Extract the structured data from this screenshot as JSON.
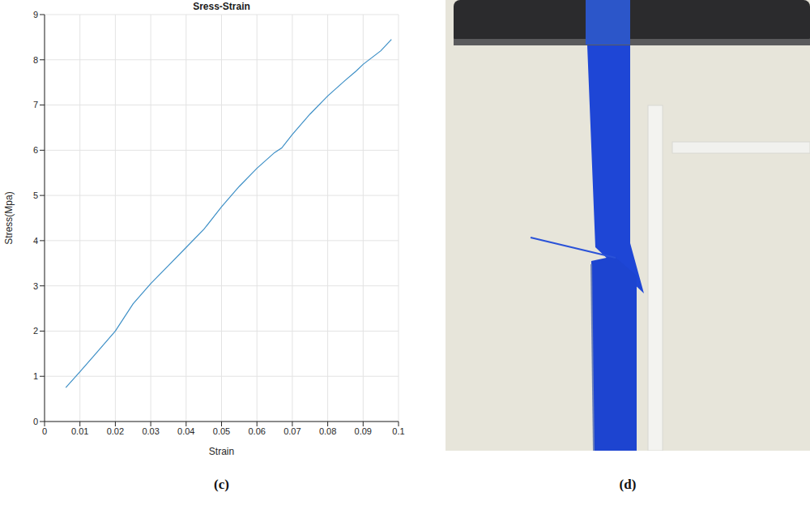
{
  "chart_data": {
    "type": "line",
    "title": "Sress-Strain",
    "x_label": "Strain",
    "y_label": "Stress(Mpa)",
    "panel_label": "(c)",
    "x": [
      0.006,
      0.01,
      0.015,
      0.02,
      0.025,
      0.03,
      0.035,
      0.04,
      0.045,
      0.05,
      0.055,
      0.06,
      0.065,
      0.067,
      0.07,
      0.075,
      0.08,
      0.085,
      0.088,
      0.09,
      0.095,
      0.098
    ],
    "values": [
      0.75,
      1.1,
      1.55,
      2.0,
      2.6,
      3.05,
      3.45,
      3.85,
      4.25,
      4.75,
      5.2,
      5.6,
      5.95,
      6.05,
      6.35,
      6.8,
      7.2,
      7.55,
      7.75,
      7.9,
      8.2,
      8.45
    ],
    "color": "#3d8fc6",
    "xlim": [
      0,
      0.1
    ],
    "xticks": [
      0,
      0.01,
      0.02,
      0.03,
      0.04,
      0.05,
      0.06,
      0.07,
      0.08,
      0.09,
      0.1
    ],
    "ylim": [
      0,
      9
    ],
    "yticks": [
      0,
      1,
      2,
      3,
      4,
      5,
      6,
      7,
      8,
      9
    ],
    "grid": true
  },
  "photo": {
    "panel_label": "(d)"
  }
}
